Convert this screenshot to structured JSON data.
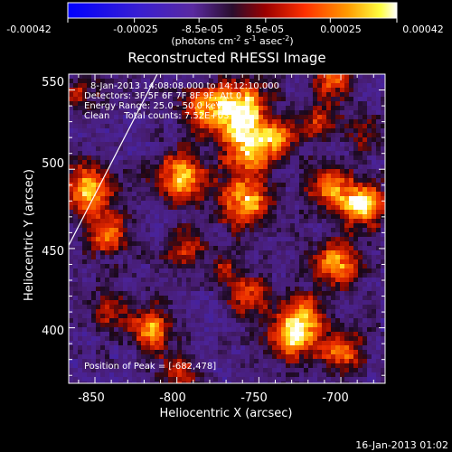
{
  "colorbar": {
    "tick_labels": [
      "-0.00042",
      "-0.00025",
      "-8.5e-05",
      "8.5e-05",
      "0.00025",
      "0.00042"
    ],
    "tick_values": [
      -0.00042,
      -0.00025,
      -8.5e-05,
      8.5e-05,
      0.00025,
      0.00042
    ],
    "range": [
      -0.00042,
      0.00042
    ],
    "unit_base": "(photons cm",
    "unit_exp1": "-2",
    "unit_mid": " s",
    "unit_exp2": "-1",
    "unit_end": " asec",
    "unit_exp3": "-2",
    "unit_close": ")"
  },
  "chart_data": {
    "type": "heatmap",
    "title": "Reconstructed RHESSI Image",
    "xlabel": "Heliocentric X (arcsec)",
    "ylabel": "Heliocentric Y (arcsec)",
    "xlim": [
      -866,
      -673
    ],
    "ylim": [
      365,
      560
    ],
    "x_ticks": [
      -850,
      -800,
      -750,
      -700
    ],
    "x_tick_labels": [
      "-850",
      "-800",
      "-750",
      "-700"
    ],
    "y_ticks": [
      400,
      450,
      500,
      550
    ],
    "y_tick_labels": [
      "400",
      "450",
      "500",
      "550"
    ],
    "info_lines": [
      "8-Jan-2013 14:08:08.000 to 14:12:10.000",
      "Detectors: 3F 5F 6F 7F 8F 9F, Att 0",
      "Energy Range: 25.0 - 50.0 keV",
      "Clean     Total counts: 7.52E+03"
    ],
    "peak_label": "Position of Peak = [-682,478]",
    "peak": [
      -682,
      478
    ],
    "limb_line": [
      [
        -866,
        452
      ],
      [
        -812,
        560
      ]
    ],
    "sources": [
      {
        "x": -762,
        "y": 538,
        "amp": 0.95,
        "r": 12
      },
      {
        "x": -757,
        "y": 513,
        "amp": 0.75,
        "r": 10
      },
      {
        "x": -784,
        "y": 538,
        "amp": 0.55,
        "r": 9
      },
      {
        "x": -855,
        "y": 486,
        "amp": 0.78,
        "r": 11
      },
      {
        "x": -797,
        "y": 494,
        "amp": 0.75,
        "r": 11
      },
      {
        "x": -758,
        "y": 480,
        "amp": 0.8,
        "r": 11
      },
      {
        "x": -738,
        "y": 520,
        "amp": 0.55,
        "r": 8
      },
      {
        "x": -686,
        "y": 478,
        "amp": 1.0,
        "r": 9
      },
      {
        "x": -707,
        "y": 488,
        "amp": 0.65,
        "r": 9
      },
      {
        "x": -714,
        "y": 530,
        "amp": 0.45,
        "r": 8
      },
      {
        "x": -703,
        "y": 440,
        "amp": 0.7,
        "r": 10
      },
      {
        "x": -722,
        "y": 408,
        "amp": 0.55,
        "r": 9
      },
      {
        "x": -730,
        "y": 395,
        "amp": 0.8,
        "r": 10
      },
      {
        "x": -700,
        "y": 385,
        "amp": 0.6,
        "r": 9
      },
      {
        "x": -816,
        "y": 400,
        "amp": 0.72,
        "r": 9
      },
      {
        "x": -843,
        "y": 458,
        "amp": 0.6,
        "r": 9
      },
      {
        "x": -795,
        "y": 450,
        "amp": 0.5,
        "r": 8
      },
      {
        "x": -755,
        "y": 420,
        "amp": 0.5,
        "r": 9
      },
      {
        "x": -840,
        "y": 412,
        "amp": 0.45,
        "r": 8
      },
      {
        "x": -800,
        "y": 372,
        "amp": 0.45,
        "r": 8
      },
      {
        "x": -860,
        "y": 548,
        "amp": 0.4,
        "r": 8
      },
      {
        "x": -770,
        "y": 440,
        "amp": 0.35,
        "r": 8
      },
      {
        "x": -705,
        "y": 556,
        "amp": 0.55,
        "r": 8
      },
      {
        "x": -685,
        "y": 520,
        "amp": 0.35,
        "r": 8
      }
    ]
  },
  "footer": {
    "timestamp": "16-Jan-2013 01:02"
  }
}
